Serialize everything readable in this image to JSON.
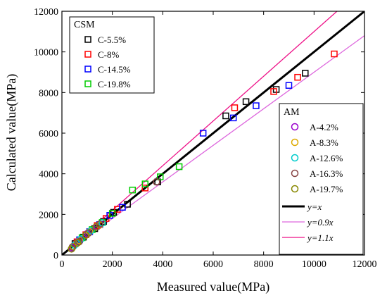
{
  "chart_data": {
    "type": "scatter",
    "xlabel": "Measured value(MPa)",
    "ylabel": "Calculated value(MPa)",
    "xlim": [
      0,
      12000
    ],
    "ylim": [
      0,
      12000
    ],
    "xticks": [
      0,
      2000,
      4000,
      6000,
      8000,
      10000,
      12000
    ],
    "yticks": [
      0,
      2000,
      4000,
      6000,
      8000,
      10000,
      12000
    ],
    "grid": false,
    "legend_groups": [
      {
        "title": "CSM",
        "placement": "top-left"
      },
      {
        "title": "AM",
        "placement": "bottom-right"
      }
    ],
    "series": [
      {
        "name": "C-5.5%",
        "group": "CSM",
        "marker": "square",
        "color": "#000000",
        "points": [
          [
            520,
            560
          ],
          [
            850,
            880
          ],
          [
            1300,
            1300
          ],
          [
            1650,
            1650
          ],
          [
            2050,
            2100
          ],
          [
            2600,
            2500
          ],
          [
            3800,
            3600
          ],
          [
            6500,
            6850
          ],
          [
            7300,
            7550
          ],
          [
            8500,
            8150
          ],
          [
            9650,
            8950
          ]
        ]
      },
      {
        "name": "C-8%",
        "group": "CSM",
        "marker": "square",
        "color": "#ff0000",
        "points": [
          [
            600,
            650
          ],
          [
            950,
            1000
          ],
          [
            1400,
            1450
          ],
          [
            1750,
            1800
          ],
          [
            2200,
            2250
          ],
          [
            3300,
            3300
          ],
          [
            6850,
            7250
          ],
          [
            8400,
            8050
          ],
          [
            9350,
            8750
          ],
          [
            10800,
            9900
          ]
        ]
      },
      {
        "name": "C-14.5%",
        "group": "CSM",
        "marker": "square",
        "color": "#0000ff",
        "points": [
          [
            700,
            750
          ],
          [
            1100,
            1150
          ],
          [
            1500,
            1500
          ],
          [
            1900,
            1950
          ],
          [
            2400,
            2350
          ],
          [
            5600,
            6000
          ],
          [
            6800,
            6750
          ],
          [
            7700,
            7350
          ],
          [
            9000,
            8350
          ]
        ]
      },
      {
        "name": "C-19.8%",
        "group": "CSM",
        "marker": "square",
        "color": "#00cc00",
        "points": [
          [
            800,
            850
          ],
          [
            1200,
            1250
          ],
          [
            1600,
            1600
          ],
          [
            2000,
            2050
          ],
          [
            2800,
            3200
          ],
          [
            3300,
            3500
          ],
          [
            3900,
            3850
          ],
          [
            4650,
            4350
          ]
        ]
      },
      {
        "name": "A-4.2%",
        "group": "AM",
        "marker": "circle",
        "color": "#9900cc",
        "points": [
          [
            400,
            350
          ],
          [
            650,
            680
          ],
          [
            1000,
            1050
          ],
          [
            1400,
            1400
          ]
        ]
      },
      {
        "name": "A-8.3%",
        "group": "AM",
        "marker": "circle",
        "color": "#ddaa00",
        "points": [
          [
            450,
            420
          ],
          [
            700,
            720
          ],
          [
            1100,
            1150
          ],
          [
            1500,
            1480
          ]
        ]
      },
      {
        "name": "A-12.6%",
        "group": "AM",
        "marker": "circle",
        "color": "#00cccc",
        "points": [
          [
            500,
            480
          ],
          [
            750,
            780
          ],
          [
            1150,
            1200
          ],
          [
            1600,
            1580
          ]
        ]
      },
      {
        "name": "A-16.3%",
        "group": "AM",
        "marker": "circle",
        "color": "#884444",
        "points": [
          [
            420,
            400
          ],
          [
            680,
            650
          ],
          [
            1050,
            1080
          ],
          [
            1500,
            1520
          ],
          [
            3750,
            3600
          ]
        ]
      },
      {
        "name": "A-19.7%",
        "group": "AM",
        "marker": "circle",
        "color": "#888800",
        "points": [
          [
            380,
            300
          ],
          [
            620,
            600
          ],
          [
            950,
            980
          ],
          [
            1350,
            1380
          ]
        ]
      }
    ],
    "reference_lines": [
      {
        "name": "y=x",
        "slope": 1.0,
        "color": "#000000"
      },
      {
        "name": "y=0.9x",
        "slope": 0.9,
        "color": "#dd66dd"
      },
      {
        "name": "y=1.1x",
        "slope": 1.1,
        "color": "#ee1188"
      }
    ]
  }
}
